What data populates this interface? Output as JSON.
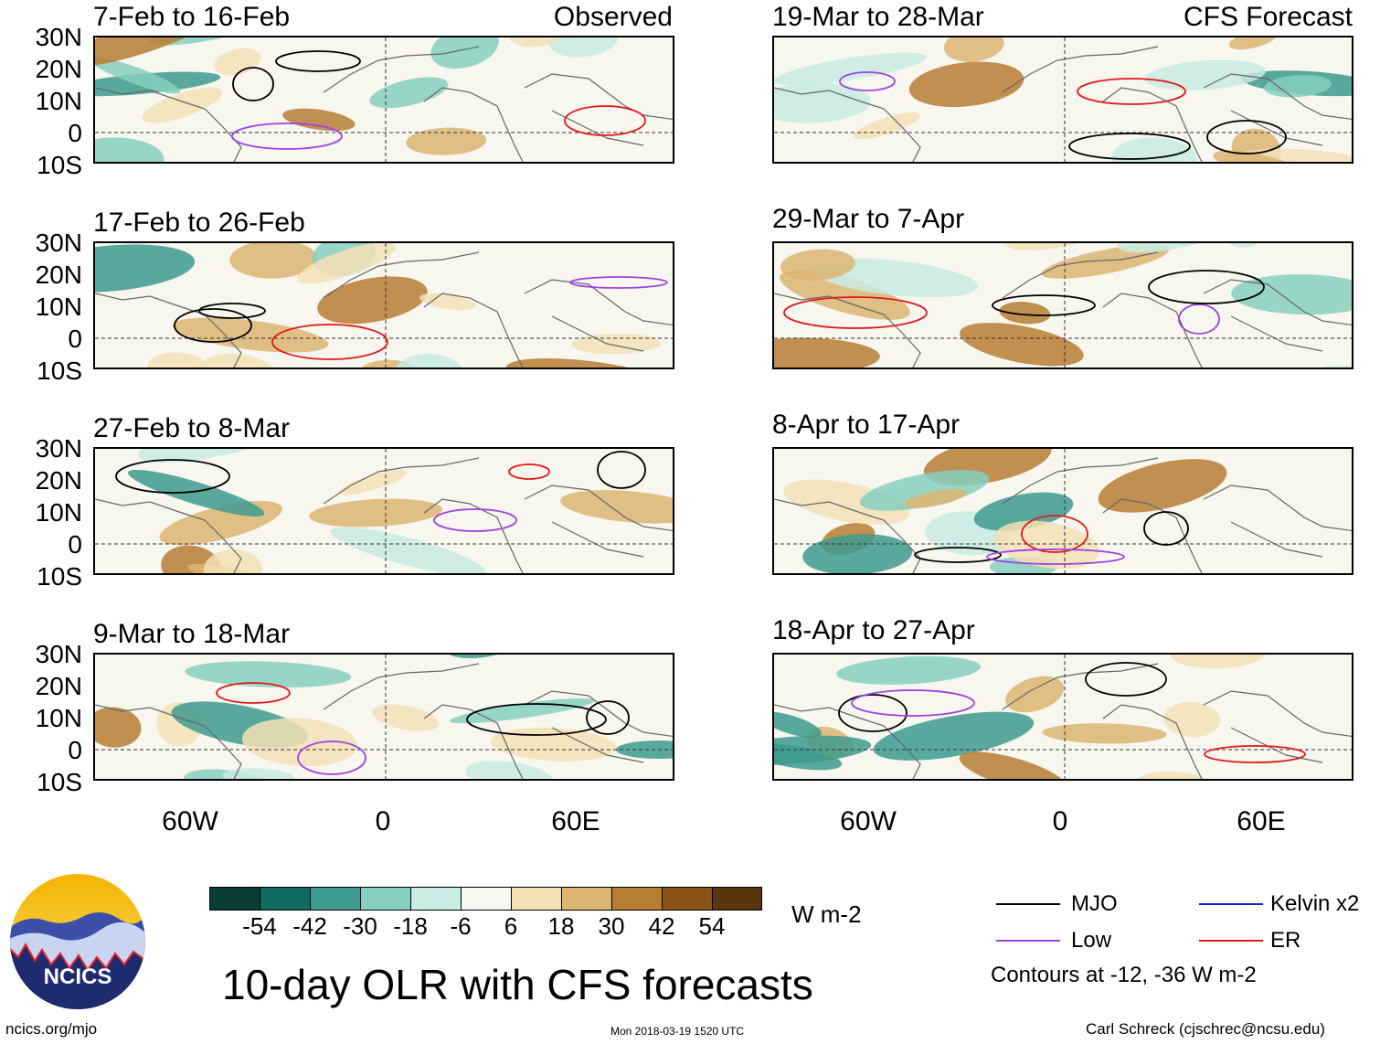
{
  "headers": {
    "left": "Observed",
    "right": "CFS Forecast"
  },
  "lat_labels": [
    "30N",
    "20N",
    "10N",
    "0",
    "10S"
  ],
  "lon_labels": [
    "60W",
    "0",
    "60E"
  ],
  "panels_left": [
    {
      "period": "7-Feb to 16-Feb"
    },
    {
      "period": "17-Feb to 26-Feb"
    },
    {
      "period": "27-Feb to 8-Mar"
    },
    {
      "period": "9-Mar to 18-Mar"
    }
  ],
  "panels_right": [
    {
      "period": "19-Mar to 28-Mar"
    },
    {
      "period": "29-Mar to 7-Apr"
    },
    {
      "period": "8-Apr to 17-Apr"
    },
    {
      "period": "18-Apr to 27-Apr"
    }
  ],
  "colorbar": {
    "colors": [
      "#0b3d36",
      "#116a60",
      "#3d9a8e",
      "#86cfc0",
      "#c8ebe2",
      "#f7f7f4",
      "#f3e1b6",
      "#dcb572",
      "#b77d33",
      "#8a5416",
      "#5a360f"
    ],
    "labels": [
      "-54",
      "-42",
      "-30",
      "-18",
      "-6",
      "6",
      "18",
      "30",
      "42",
      "54"
    ],
    "units": "W m-2"
  },
  "legend": {
    "items": [
      {
        "name": "MJO",
        "color": "#000000"
      },
      {
        "name": "Kelvin x2",
        "color": "#1a1adc"
      },
      {
        "name": "Low",
        "color": "#a040e0"
      },
      {
        "name": "ER",
        "color": "#e01818"
      }
    ],
    "contours_note": "Contours at -12, -36 W m-2"
  },
  "logo": {
    "text": "NCICS"
  },
  "title": "10-day OLR with CFS forecasts",
  "footer": {
    "left": "ncics.org/mjo",
    "center": "Mon 2018-03-19 1520 UTC",
    "right": "Carl Schreck (cjschrec@ncsu.edu)"
  }
}
